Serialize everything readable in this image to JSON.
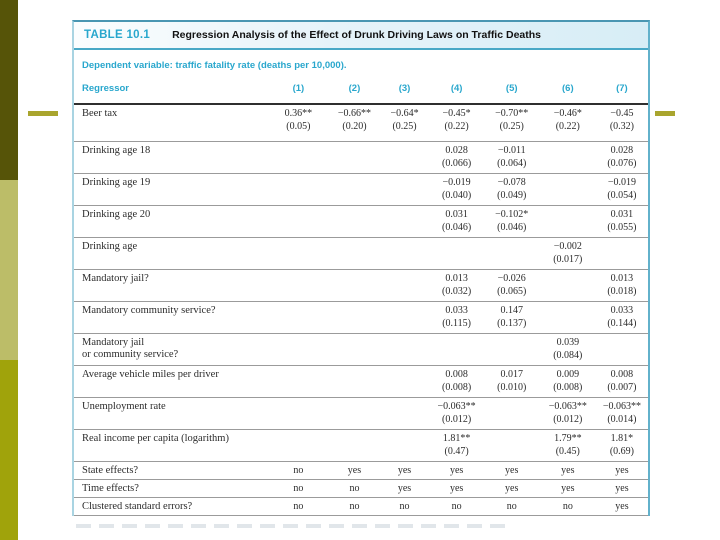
{
  "colors": {
    "teal_text": "#29a7cd",
    "caption_band": "#d7edf6",
    "table_border": "#62b1cb",
    "bar_dark_olive": "#565408",
    "bar_light_olive": "#bcbd68",
    "bar_mid_olive": "#a0a30b",
    "dash_olive": "#a9a52e",
    "header_rule": "#2f2f2f",
    "row_rule": "#9b9b9b"
  },
  "table": {
    "label": "TABLE 10.1",
    "title": "Regression Analysis of the Effect of Drunk Driving Laws on Traffic Deaths",
    "dependent_variable_note": "Dependent variable: traffic fatality rate (deaths per 10,000).",
    "regressor_header": "Regressor",
    "column_headers": [
      "(1)",
      "(2)",
      "(3)",
      "(4)",
      "(5)",
      "(6)",
      "(7)"
    ],
    "rows": [
      {
        "type": "coef",
        "label": "Beer tax",
        "est": [
          "0.36**",
          "−0.66**",
          "−0.64*",
          "−0.45*",
          "−0.70**",
          "−0.46*",
          "−0.45"
        ],
        "se": [
          "(0.05)",
          "(0.20)",
          "(0.25)",
          "(0.22)",
          "(0.25)",
          "(0.22)",
          "(0.32)"
        ]
      },
      {
        "type": "coef",
        "label": "Drinking age 18",
        "est": [
          "",
          "",
          "",
          "0.028",
          "−0.011",
          "",
          "0.028"
        ],
        "se": [
          "",
          "",
          "",
          "(0.066)",
          "(0.064)",
          "",
          "(0.076)"
        ]
      },
      {
        "type": "coef",
        "label": "Drinking age 19",
        "est": [
          "",
          "",
          "",
          "−0.019",
          "−0.078",
          "",
          "−0.019"
        ],
        "se": [
          "",
          "",
          "",
          "(0.040)",
          "(0.049)",
          "",
          "(0.054)"
        ]
      },
      {
        "type": "coef",
        "label": "Drinking age 20",
        "est": [
          "",
          "",
          "",
          "0.031",
          "−0.102*",
          "",
          "0.031"
        ],
        "se": [
          "",
          "",
          "",
          "(0.046)",
          "(0.046)",
          "",
          "(0.055)"
        ]
      },
      {
        "type": "coef",
        "label": "Drinking age",
        "est": [
          "",
          "",
          "",
          "",
          "",
          "−0.002",
          ""
        ],
        "se": [
          "",
          "",
          "",
          "",
          "",
          "(0.017)",
          ""
        ]
      },
      {
        "type": "coef",
        "label": "Mandatory jail?",
        "est": [
          "",
          "",
          "",
          "0.013",
          "−0.026",
          "",
          "0.013"
        ],
        "se": [
          "",
          "",
          "",
          "(0.032)",
          "(0.065)",
          "",
          "(0.018)"
        ]
      },
      {
        "type": "coef",
        "label": "Mandatory community service?",
        "est": [
          "",
          "",
          "",
          "0.033",
          "0.147",
          "",
          "0.033"
        ],
        "se": [
          "",
          "",
          "",
          "(0.115)",
          "(0.137)",
          "",
          "(0.144)"
        ]
      },
      {
        "type": "coef",
        "label": "Mandatory jail\nor community service?",
        "est": [
          "",
          "",
          "",
          "",
          "",
          "0.039",
          ""
        ],
        "se": [
          "",
          "",
          "",
          "",
          "",
          "(0.084)",
          ""
        ]
      },
      {
        "type": "coef",
        "label": "Average vehicle miles per driver",
        "est": [
          "",
          "",
          "",
          "0.008",
          "0.017",
          "0.009",
          "0.008"
        ],
        "se": [
          "",
          "",
          "",
          "(0.008)",
          "(0.010)",
          "(0.008)",
          "(0.007)"
        ]
      },
      {
        "type": "coef",
        "label": "Unemployment rate",
        "est": [
          "",
          "",
          "",
          "−0.063**",
          "",
          "−0.063**",
          "−0.063**"
        ],
        "se": [
          "",
          "",
          "",
          "(0.012)",
          "",
          "(0.012)",
          "(0.014)"
        ]
      },
      {
        "type": "coef",
        "label": "Real income per capita (logarithm)",
        "est": [
          "",
          "",
          "",
          "1.81**",
          "",
          "1.79**",
          "1.81*"
        ],
        "se": [
          "",
          "",
          "",
          "(0.47)",
          "",
          "(0.45)",
          "(0.69)"
        ]
      },
      {
        "type": "flag",
        "label": "State effects?",
        "values": [
          "no",
          "yes",
          "yes",
          "yes",
          "yes",
          "yes",
          "yes"
        ]
      },
      {
        "type": "flag",
        "label": "Time effects?",
        "values": [
          "no",
          "no",
          "yes",
          "yes",
          "yes",
          "yes",
          "yes"
        ]
      },
      {
        "type": "flag",
        "label": "Clustered standard errors?",
        "values": [
          "no",
          "no",
          "no",
          "no",
          "no",
          "no",
          "yes"
        ]
      }
    ]
  }
}
